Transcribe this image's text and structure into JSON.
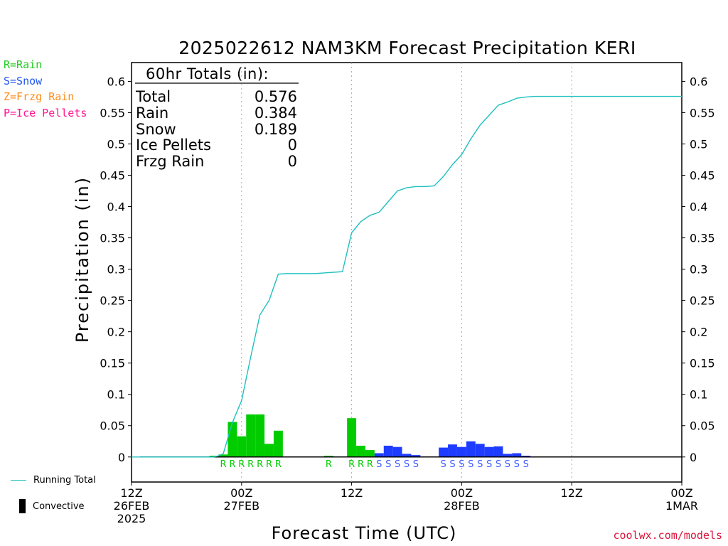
{
  "chart_data": {
    "type": "bar",
    "title": "2025022612 NAM3KM Forecast Precipitation KERI",
    "xlabel": "Forecast Time (UTC)",
    "ylabel": "Precipitation (in)",
    "ylim": [
      -0.04,
      0.63
    ],
    "xlim_hours": [
      0,
      60
    ],
    "grid": "vertical dotted at 00Z and 12Z",
    "y_ticks": [
      "0",
      "0.05",
      "0.1",
      "0.15",
      "0.2",
      "0.25",
      "0.3",
      "0.35",
      "0.4",
      "0.45",
      "0.5",
      "0.55",
      "0.6"
    ],
    "x_ticks": [
      {
        "hour": 0,
        "lines": [
          "12Z",
          "26FEB",
          "2025"
        ]
      },
      {
        "hour": 12,
        "lines": [
          "00Z",
          "27FEB"
        ]
      },
      {
        "hour": 24,
        "lines": [
          "12Z"
        ]
      },
      {
        "hour": 36,
        "lines": [
          "00Z",
          "28FEB"
        ]
      },
      {
        "hour": 48,
        "lines": [
          "12Z"
        ]
      },
      {
        "hour": 60,
        "lines": [
          "00Z",
          "1MAR"
        ]
      }
    ],
    "series": [
      {
        "name": "Rain",
        "color": "#00cc00",
        "bars": [
          {
            "x0": 8.5,
            "x1": 9.5,
            "v": 0.002
          },
          {
            "x0": 9.5,
            "x1": 10.5,
            "v": 0.004
          },
          {
            "x0": 10.5,
            "x1": 11.5,
            "v": 0.056
          },
          {
            "x0": 11.5,
            "x1": 12.5,
            "v": 0.033
          },
          {
            "x0": 12.5,
            "x1": 13.5,
            "v": 0.068
          },
          {
            "x0": 13.5,
            "x1": 14.5,
            "v": 0.068
          },
          {
            "x0": 14.5,
            "x1": 15.5,
            "v": 0.021
          },
          {
            "x0": 15.5,
            "x1": 16.5,
            "v": 0.042
          },
          {
            "x0": 21.0,
            "x1": 22.0,
            "v": 0.002
          },
          {
            "x0": 23.5,
            "x1": 24.5,
            "v": 0.062
          },
          {
            "x0": 24.5,
            "x1": 25.5,
            "v": 0.018
          },
          {
            "x0": 25.5,
            "x1": 26.5,
            "v": 0.011
          }
        ]
      },
      {
        "name": "Snow",
        "color": "#1e3cff",
        "bars": [
          {
            "x0": 26.5,
            "x1": 27.5,
            "v": 0.006
          },
          {
            "x0": 27.5,
            "x1": 28.5,
            "v": 0.018
          },
          {
            "x0": 28.5,
            "x1": 29.5,
            "v": 0.016
          },
          {
            "x0": 29.5,
            "x1": 30.5,
            "v": 0.005
          },
          {
            "x0": 30.5,
            "x1": 31.5,
            "v": 0.003
          },
          {
            "x0": 33.5,
            "x1": 34.5,
            "v": 0.015
          },
          {
            "x0": 34.5,
            "x1": 35.5,
            "v": 0.02
          },
          {
            "x0": 35.5,
            "x1": 36.5,
            "v": 0.016
          },
          {
            "x0": 36.5,
            "x1": 37.5,
            "v": 0.025
          },
          {
            "x0": 37.5,
            "x1": 38.5,
            "v": 0.021
          },
          {
            "x0": 38.5,
            "x1": 39.5,
            "v": 0.016
          },
          {
            "x0": 39.5,
            "x1": 40.5,
            "v": 0.017
          },
          {
            "x0": 40.5,
            "x1": 41.5,
            "v": 0.005
          },
          {
            "x0": 41.5,
            "x1": 42.5,
            "v": 0.006
          },
          {
            "x0": 42.5,
            "x1": 43.5,
            "v": 0.002
          }
        ]
      },
      {
        "name": "Running Total",
        "color": "#20c0c0",
        "points": [
          [
            0,
            0
          ],
          [
            9,
            0
          ],
          [
            9.5,
            0.002
          ],
          [
            10,
            0.005
          ],
          [
            11,
            0.055
          ],
          [
            12,
            0.09
          ],
          [
            13,
            0.16
          ],
          [
            14,
            0.227
          ],
          [
            15,
            0.25
          ],
          [
            16,
            0.292
          ],
          [
            17,
            0.293
          ],
          [
            18,
            0.293
          ],
          [
            19,
            0.293
          ],
          [
            20,
            0.293
          ],
          [
            21,
            0.294
          ],
          [
            22,
            0.295
          ],
          [
            23,
            0.296
          ],
          [
            24,
            0.358
          ],
          [
            25,
            0.376
          ],
          [
            26,
            0.386
          ],
          [
            27,
            0.391
          ],
          [
            28,
            0.408
          ],
          [
            29,
            0.425
          ],
          [
            30,
            0.43
          ],
          [
            31,
            0.432
          ],
          [
            32,
            0.432
          ],
          [
            33,
            0.433
          ],
          [
            34,
            0.448
          ],
          [
            35,
            0.467
          ],
          [
            36,
            0.483
          ],
          [
            37,
            0.508
          ],
          [
            38,
            0.53
          ],
          [
            39,
            0.546
          ],
          [
            40,
            0.562
          ],
          [
            41,
            0.567
          ],
          [
            42,
            0.573
          ],
          [
            43,
            0.575
          ],
          [
            44,
            0.576
          ],
          [
            60,
            0.576
          ]
        ]
      }
    ],
    "precip_type_labels": [
      {
        "hour": 10,
        "t": "R",
        "color": "#00cc00"
      },
      {
        "hour": 11,
        "t": "R",
        "color": "#00cc00"
      },
      {
        "hour": 12,
        "t": "R",
        "color": "#00cc00"
      },
      {
        "hour": 13,
        "t": "R",
        "color": "#00cc00"
      },
      {
        "hour": 14,
        "t": "R",
        "color": "#00cc00"
      },
      {
        "hour": 15,
        "t": "R",
        "color": "#00cc00"
      },
      {
        "hour": 16,
        "t": "R",
        "color": "#00cc00"
      },
      {
        "hour": 21.5,
        "t": "R",
        "color": "#00cc00"
      },
      {
        "hour": 24,
        "t": "R",
        "color": "#00cc00"
      },
      {
        "hour": 25,
        "t": "R",
        "color": "#00cc00"
      },
      {
        "hour": 26,
        "t": "R",
        "color": "#00cc00"
      },
      {
        "hour": 27,
        "t": "S",
        "color": "#3a5cff"
      },
      {
        "hour": 28,
        "t": "S",
        "color": "#3a5cff"
      },
      {
        "hour": 29,
        "t": "S",
        "color": "#3a5cff"
      },
      {
        "hour": 30,
        "t": "S",
        "color": "#3a5cff"
      },
      {
        "hour": 31,
        "t": "S",
        "color": "#3a5cff"
      },
      {
        "hour": 34,
        "t": "S",
        "color": "#3a5cff"
      },
      {
        "hour": 35,
        "t": "S",
        "color": "#3a5cff"
      },
      {
        "hour": 36,
        "t": "S",
        "color": "#3a5cff"
      },
      {
        "hour": 37,
        "t": "S",
        "color": "#3a5cff"
      },
      {
        "hour": 38,
        "t": "S",
        "color": "#3a5cff"
      },
      {
        "hour": 39,
        "t": "S",
        "color": "#3a5cff"
      },
      {
        "hour": 40,
        "t": "S",
        "color": "#3a5cff"
      },
      {
        "hour": 41,
        "t": "S",
        "color": "#3a5cff"
      },
      {
        "hour": 42,
        "t": "S",
        "color": "#3a5cff"
      },
      {
        "hour": 43,
        "t": "S",
        "color": "#3a5cff"
      }
    ],
    "totals": {
      "heading": "60hr Totals (in):",
      "rows": [
        {
          "label": "Total",
          "value": "0.576"
        },
        {
          "label": "Rain",
          "value": "0.384"
        },
        {
          "label": "Snow",
          "value": "0.189"
        },
        {
          "label": "Ice Pellets",
          "value": "0"
        },
        {
          "label": "Frzg Rain",
          "value": "0"
        }
      ]
    }
  },
  "type_legend": [
    {
      "text": "R=Rain",
      "color": "#22cc22"
    },
    {
      "text": "S=Snow",
      "color": "#2255ee"
    },
    {
      "text": "Z=Frzg Rain",
      "color": "#ff8c1a"
    },
    {
      "text": "P=Ice Pellets",
      "color": "#ff1493"
    }
  ],
  "bottom_legend": {
    "running_total": "Running Total",
    "running_total_color": "#20c0c0",
    "convective": "Convective"
  },
  "credit": "coolwx.com/models"
}
